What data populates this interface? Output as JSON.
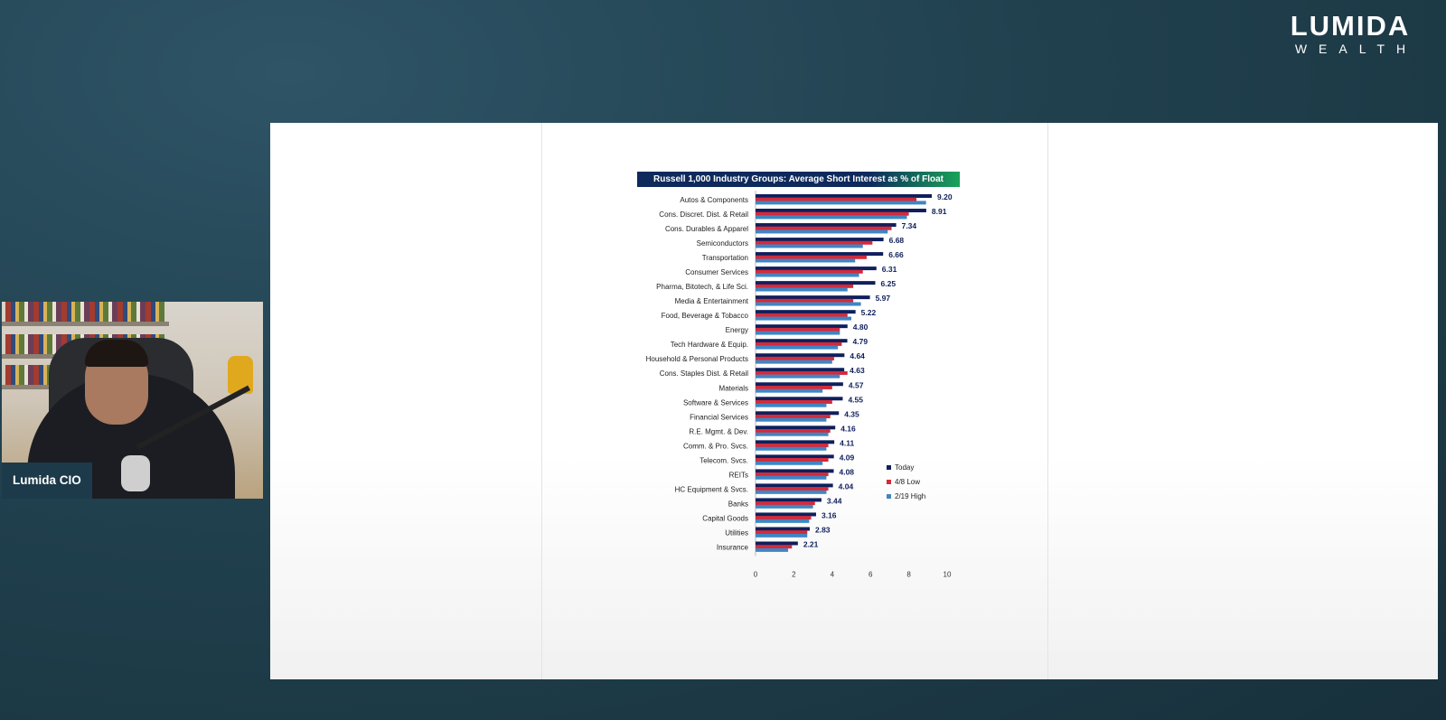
{
  "brand": {
    "name": "LUMIDA",
    "subtitle": "WEALTH"
  },
  "presenter": {
    "label": "Lumida CIO"
  },
  "chart_data": {
    "type": "bar",
    "orientation": "horizontal",
    "title": "Russell 1,000 Industry Groups: Average Short Interest as % of Float",
    "categories": [
      "Autos & Components",
      "Cons. Discret. Dist. & Retail",
      "Cons. Durables & Apparel",
      "Semiconductors",
      "Transportation",
      "Consumer Services",
      "Pharma, Bitotech, & Life Sci.",
      "Media & Entertainment",
      "Food, Beverage & Tobacco",
      "Energy",
      "Tech Hardware & Equip.",
      "Household & Personal Products",
      "Cons. Staples Dist. & Retail",
      "Materials",
      "Software & Services",
      "Financial Services",
      "R.E. Mgmt. & Dev.",
      "Comm. & Pro. Svcs.",
      "Telecom. Svcs.",
      "REITs",
      "HC Equipment & Svcs.",
      "Banks",
      "Capital Goods",
      "Utilities",
      "Insurance"
    ],
    "series": [
      {
        "name": "Today",
        "color": "#0f1f5c",
        "values": [
          9.2,
          8.91,
          7.34,
          6.68,
          6.66,
          6.31,
          6.25,
          5.97,
          5.22,
          4.8,
          4.79,
          4.64,
          4.63,
          4.57,
          4.55,
          4.35,
          4.16,
          4.11,
          4.09,
          4.08,
          4.04,
          3.44,
          3.16,
          2.83,
          2.21
        ]
      },
      {
        "name": "4/8 Low",
        "color": "#d42a3a",
        "values": [
          8.4,
          8.0,
          7.1,
          6.1,
          5.8,
          5.6,
          5.1,
          5.1,
          4.8,
          4.4,
          4.5,
          4.1,
          4.8,
          4.0,
          4.0,
          3.9,
          3.9,
          3.8,
          3.8,
          3.8,
          3.8,
          3.1,
          2.9,
          2.7,
          1.9
        ]
      },
      {
        "name": "2/19 High",
        "color": "#3f86c4",
        "values": [
          8.9,
          7.9,
          6.9,
          5.6,
          5.2,
          5.4,
          4.8,
          5.5,
          5.0,
          4.4,
          4.3,
          4.0,
          4.4,
          3.5,
          3.7,
          3.7,
          3.8,
          3.7,
          3.5,
          3.7,
          3.7,
          3.0,
          2.8,
          2.7,
          1.7
        ]
      }
    ],
    "data_labels": [
      "9.20",
      "8.91",
      "7.34",
      "6.68",
      "6.66",
      "6.31",
      "6.25",
      "5.97",
      "5.22",
      "4.80",
      "4.79",
      "4.64",
      "4.63",
      "4.57",
      "4.55",
      "4.35",
      "4.16",
      "4.11",
      "4.09",
      "4.08",
      "4.04",
      "3.44",
      "3.16",
      "2.83",
      "2.21"
    ],
    "xlim": [
      0,
      10
    ],
    "xticks": [
      "0",
      "2",
      "4",
      "6",
      "8",
      "10"
    ],
    "legend_position": "right",
    "grid": false
  }
}
